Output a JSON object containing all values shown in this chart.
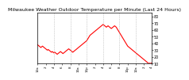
{
  "title": "Milwaukee Weather Outdoor Temperature per Minute (Last 24 Hours)",
  "title_fontsize": 4.5,
  "line_color": "#ff0000",
  "bg_color": "#ffffff",
  "plot_bg_color": "#ffffff",
  "grid_color": "#aaaaaa",
  "ylim": [
    10,
    85
  ],
  "yticks": [
    10,
    20,
    30,
    40,
    50,
    60,
    70,
    80
  ],
  "ytick_labels": [
    "10",
    "20",
    "30",
    "40",
    "50",
    "60",
    "70",
    "80"
  ],
  "x_values": [
    0,
    1,
    2,
    3,
    4,
    5,
    6,
    7,
    8,
    9,
    10,
    11,
    12,
    13,
    14,
    15,
    16,
    17,
    18,
    19,
    20,
    21,
    22,
    23,
    24,
    25,
    26,
    27,
    28,
    29,
    30,
    31,
    32,
    33,
    34,
    35,
    36,
    37,
    38,
    39,
    40,
    41,
    42,
    43,
    44,
    45,
    46,
    47,
    48,
    49,
    50,
    51,
    52,
    53,
    54,
    55,
    56,
    57,
    58,
    59,
    60,
    61,
    62,
    63,
    64,
    65,
    66,
    67,
    68,
    69,
    70,
    71,
    72,
    73,
    74,
    75,
    76,
    77,
    78,
    79,
    80,
    81,
    82,
    83,
    84,
    85,
    86,
    87,
    88,
    89,
    90,
    91,
    92,
    93,
    94,
    95,
    96,
    97,
    98,
    99,
    100,
    101,
    102,
    103,
    104,
    105,
    106,
    107,
    108,
    109,
    110,
    111,
    112,
    113,
    114,
    115,
    116,
    117,
    118,
    119,
    120,
    121,
    122,
    123,
    124,
    125,
    126,
    127,
    128,
    129,
    130,
    131,
    132,
    133,
    134,
    135,
    136,
    137,
    138,
    139
  ],
  "y_values": [
    38,
    37,
    36,
    35,
    34,
    35,
    36,
    35,
    34,
    33,
    32,
    31,
    30,
    31,
    30,
    29,
    28,
    27,
    28,
    27,
    26,
    27,
    26,
    25,
    24,
    25,
    26,
    27,
    28,
    27,
    26,
    25,
    26,
    27,
    28,
    29,
    30,
    31,
    32,
    31,
    30,
    29,
    28,
    27,
    28,
    29,
    30,
    31,
    32,
    33,
    34,
    35,
    36,
    37,
    38,
    39,
    40,
    41,
    42,
    43,
    44,
    46,
    48,
    50,
    52,
    53,
    54,
    55,
    56,
    57,
    58,
    59,
    60,
    61,
    62,
    63,
    64,
    65,
    66,
    67,
    68,
    67,
    66,
    65,
    64,
    65,
    66,
    65,
    64,
    63,
    62,
    63,
    64,
    65,
    66,
    65,
    64,
    62,
    60,
    58,
    56,
    54,
    52,
    50,
    48,
    46,
    44,
    42,
    40,
    38,
    36,
    35,
    34,
    33,
    32,
    31,
    30,
    29,
    28,
    27,
    26,
    25,
    24,
    23,
    22,
    21,
    20,
    19,
    18,
    17,
    16,
    15,
    14,
    13,
    12,
    11,
    10,
    11,
    10,
    11
  ],
  "vgrid_positions": [
    20,
    40,
    60,
    80,
    100,
    120
  ],
  "xtick_positions": [
    0,
    10,
    20,
    30,
    40,
    50,
    60,
    70,
    80,
    90,
    100,
    110,
    120,
    130,
    139
  ],
  "xtick_labels": [
    "12a",
    "2",
    "4",
    "6",
    "8",
    "10a",
    "12p",
    "2",
    "4",
    "6",
    "8",
    "10p",
    "12a",
    "2",
    "4"
  ],
  "xtick_fontsize": 3.0,
  "ytick_fontsize": 3.5,
  "linewidth": 0.8
}
